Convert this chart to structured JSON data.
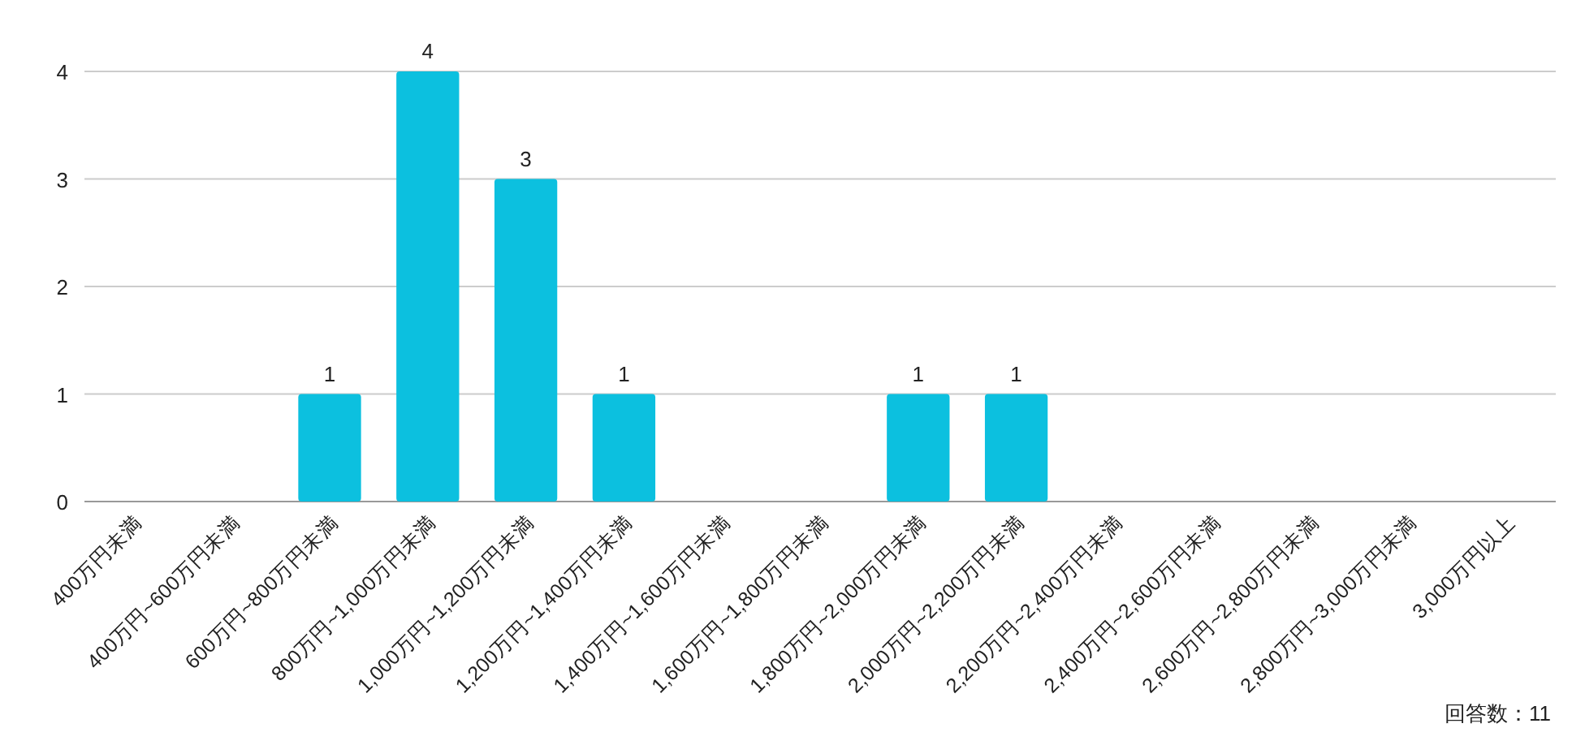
{
  "chart_data": {
    "type": "bar",
    "categories": [
      "400万円未満",
      "400万円~600万円未満",
      "600万円~800万円未満",
      "800万円~1,000万円未満",
      "1,000万円~1,200万円未満",
      "1,200万円~1,400万円未満",
      "1,400万円~1,600万円未満",
      "1,600万円~1,800万円未満",
      "1,800万円~2,000万円未満",
      "2,000万円~2,200万円未満",
      "2,200万円~2,400万円未満",
      "2,400万円~2,600万円未満",
      "2,600万円~2,800万円未満",
      "2,800万円~3,000万円未満",
      "3,000万円以上"
    ],
    "values": [
      0,
      0,
      1,
      4,
      3,
      1,
      0,
      0,
      1,
      1,
      0,
      0,
      0,
      0,
      0
    ],
    "value_labels": [
      null,
      null,
      "1",
      "4",
      "3",
      "1",
      null,
      null,
      "1",
      "1",
      null,
      null,
      null,
      null,
      null
    ],
    "color": "#0cc0df",
    "ylim": [
      0,
      4
    ],
    "yticks": [
      0,
      1,
      2,
      3,
      4
    ],
    "grid": "y",
    "annotations": [
      "回答数：11"
    ]
  }
}
